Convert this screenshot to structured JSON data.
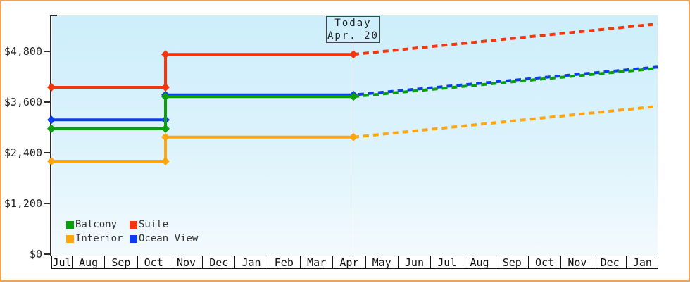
{
  "annotations": {
    "today_label": "Today",
    "today_date": "Apr. 20"
  },
  "legend": {
    "items": [
      {
        "label": "Balcony",
        "color": "#0ba00b"
      },
      {
        "label": "Suite",
        "color": "#f5350c"
      },
      {
        "label": "Interior",
        "color": "#ffa60f"
      },
      {
        "label": "Ocean View",
        "color": "#0d3cf0"
      }
    ]
  },
  "chart_data": {
    "type": "line",
    "title": "",
    "xlabel": "",
    "ylabel": "",
    "x_labels": [
      "Jul",
      "Aug",
      "Sep",
      "Oct",
      "Nov",
      "Dec",
      "Jan",
      "Feb",
      "Mar",
      "Apr",
      "May",
      "Jun",
      "Jul",
      "Aug",
      "Sep",
      "Oct",
      "Nov",
      "Dec",
      "Jan"
    ],
    "y_ticks": [
      {
        "label": "$4,800",
        "value": 4800
      },
      {
        "label": "$3,600",
        "value": 3600
      },
      {
        "label": "$2,400",
        "value": 2400
      },
      {
        "label": "$1,200",
        "value": 1200
      },
      {
        "label": "$0",
        "value": 0
      }
    ],
    "ylim": [
      0,
      5650
    ],
    "today_marker": {
      "label": "Today",
      "date": "Apr. 20",
      "at_month": "Apr"
    },
    "price_increase_time": "late Oct",
    "series": [
      {
        "name": "Balcony",
        "color": "#0ba00b",
        "initial_usd": 2970,
        "after_increase_usd": 3730,
        "value_today_usd": 3730,
        "forecast_end_usd": 4400,
        "history_style": "solid",
        "forecast_style": "dashed"
      },
      {
        "name": "Suite",
        "color": "#f5350c",
        "initial_usd": 3950,
        "after_increase_usd": 4730,
        "value_today_usd": 4730,
        "forecast_end_usd": 5450,
        "history_style": "solid",
        "forecast_style": "dashed"
      },
      {
        "name": "Interior",
        "color": "#ffa60f",
        "initial_usd": 2200,
        "after_increase_usd": 2770,
        "value_today_usd": 2770,
        "forecast_end_usd": 3500,
        "history_style": "solid",
        "forecast_style": "dashed"
      },
      {
        "name": "Ocean View",
        "color": "#0d3cf0",
        "initial_usd": 3180,
        "after_increase_usd": 3770,
        "value_today_usd": 3770,
        "forecast_end_usd": 4430,
        "history_style": "solid",
        "forecast_style": "dashed"
      }
    ],
    "draw_order": [
      "Ocean View",
      "Interior",
      "Suite",
      "Balcony"
    ],
    "legend_position": "bottom-left-inside",
    "grid": false
  }
}
